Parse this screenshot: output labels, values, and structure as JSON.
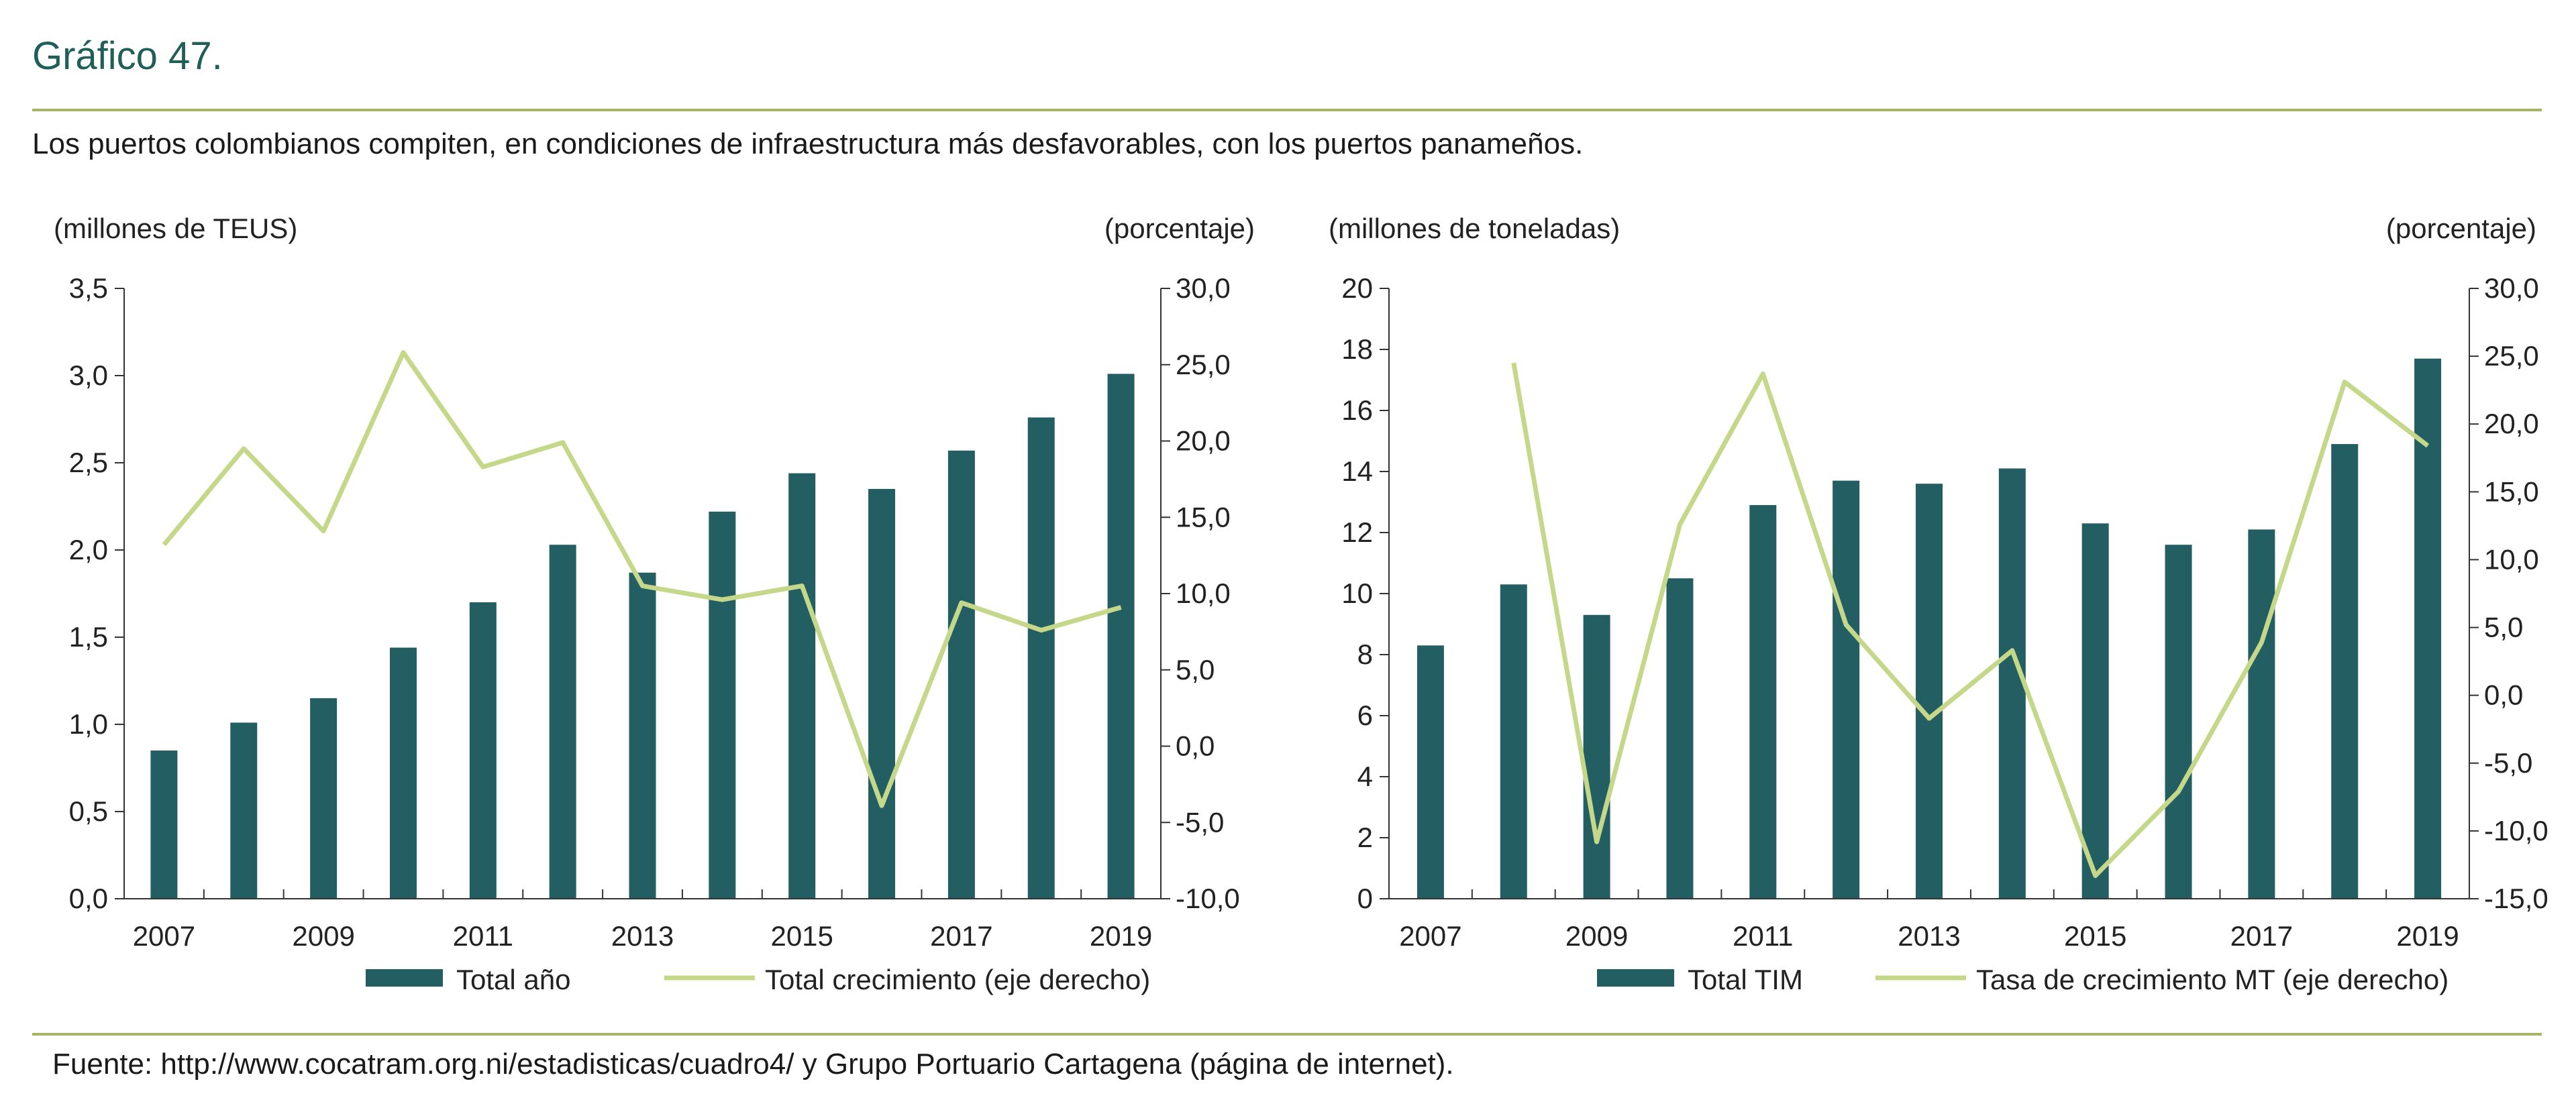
{
  "header": {
    "title": "Gráfico 47.",
    "subtitle": "Los puertos colombianos compiten, en condiciones de infraestructura más desfavorables, con los puertos panameños."
  },
  "footer": {
    "source": "Fuente: http://www.cocatram.org.ni/estadisticas/cuadro4/ y Grupo Portuario Cartagena (página de internet)."
  },
  "colors": {
    "bar": "#235e63",
    "line": "#c5d88a",
    "axis": "#333333",
    "title": "#1f5f57",
    "rule": "#a7b467"
  },
  "chart_data": [
    {
      "type": "bar",
      "x": [
        2007,
        2008,
        2009,
        2010,
        2011,
        2012,
        2013,
        2014,
        2015,
        2016,
        2017,
        2018,
        2019
      ],
      "x_tick_labels": [
        "2007",
        "2009",
        "2011",
        "2013",
        "2015",
        "2017",
        "2019"
      ],
      "left_unit_label": "(millones de TEUS)",
      "right_unit_label": "(porcentaje)",
      "ylim": [
        0,
        3.5
      ],
      "y_ticks": [
        0,
        0.5,
        1.0,
        1.5,
        2.0,
        2.5,
        3.0,
        3.5
      ],
      "y_tick_labels": [
        "0,0",
        "0,5",
        "1,0",
        "1,5",
        "2,0",
        "2,5",
        "3,0",
        "3,5"
      ],
      "y2lim": [
        -10,
        30
      ],
      "y2_ticks": [
        -10,
        -5,
        0,
        5,
        10,
        15,
        20,
        25,
        30
      ],
      "y2_tick_labels": [
        "-10,0",
        "-5,0",
        "0,0",
        "5,0",
        "10,0",
        "15,0",
        "20,0",
        "25,0",
        "30,0"
      ],
      "series": [
        {
          "name": "Total año",
          "type": "bar",
          "axis": "left",
          "values": [
            0.85,
            1.01,
            1.15,
            1.44,
            1.7,
            2.03,
            1.87,
            2.22,
            2.44,
            2.35,
            2.57,
            2.76,
            3.01
          ]
        },
        {
          "name": "Total crecimiento (eje derecho)",
          "type": "line",
          "axis": "right",
          "values": [
            13.2,
            19.5,
            14.1,
            25.8,
            18.3,
            19.9,
            10.5,
            9.6,
            10.5,
            -3.9,
            9.4,
            7.6,
            9.1
          ]
        }
      ]
    },
    {
      "type": "bar",
      "x": [
        2007,
        2008,
        2009,
        2010,
        2011,
        2012,
        2013,
        2014,
        2015,
        2016,
        2017,
        2018,
        2019
      ],
      "x_tick_labels": [
        "2007",
        "2009",
        "2011",
        "2013",
        "2015",
        "2017",
        "2019"
      ],
      "left_unit_label": "(millones de toneladas)",
      "right_unit_label": "(porcentaje)",
      "ylim": [
        0,
        20
      ],
      "y_ticks": [
        0,
        2,
        4,
        6,
        8,
        10,
        12,
        14,
        16,
        18,
        20
      ],
      "y_tick_labels": [
        "0",
        "2",
        "4",
        "6",
        "8",
        "10",
        "12",
        "14",
        "16",
        "18",
        "20"
      ],
      "y2lim": [
        -15,
        30
      ],
      "y2_ticks": [
        -15,
        -10,
        -5,
        0,
        5,
        10,
        15,
        20,
        25,
        30
      ],
      "y2_tick_labels": [
        "-15,0",
        "-10,0",
        "-5,0",
        "0,0",
        "5,0",
        "10,0",
        "15,0",
        "20,0",
        "25,0",
        "30,0"
      ],
      "series": [
        {
          "name": "Total TIM",
          "type": "bar",
          "axis": "left",
          "values": [
            8.3,
            10.3,
            9.3,
            10.5,
            12.9,
            13.7,
            13.6,
            14.1,
            12.3,
            11.6,
            12.1,
            14.9,
            17.7
          ]
        },
        {
          "name": "Tasa de crecimiento MT (eje derecho)",
          "type": "line",
          "axis": "right",
          "values": [
            null,
            24.5,
            -10.8,
            12.6,
            23.7,
            5.2,
            -1.7,
            3.3,
            -13.3,
            -7.1,
            3.9,
            23.1,
            18.4
          ]
        }
      ]
    }
  ]
}
